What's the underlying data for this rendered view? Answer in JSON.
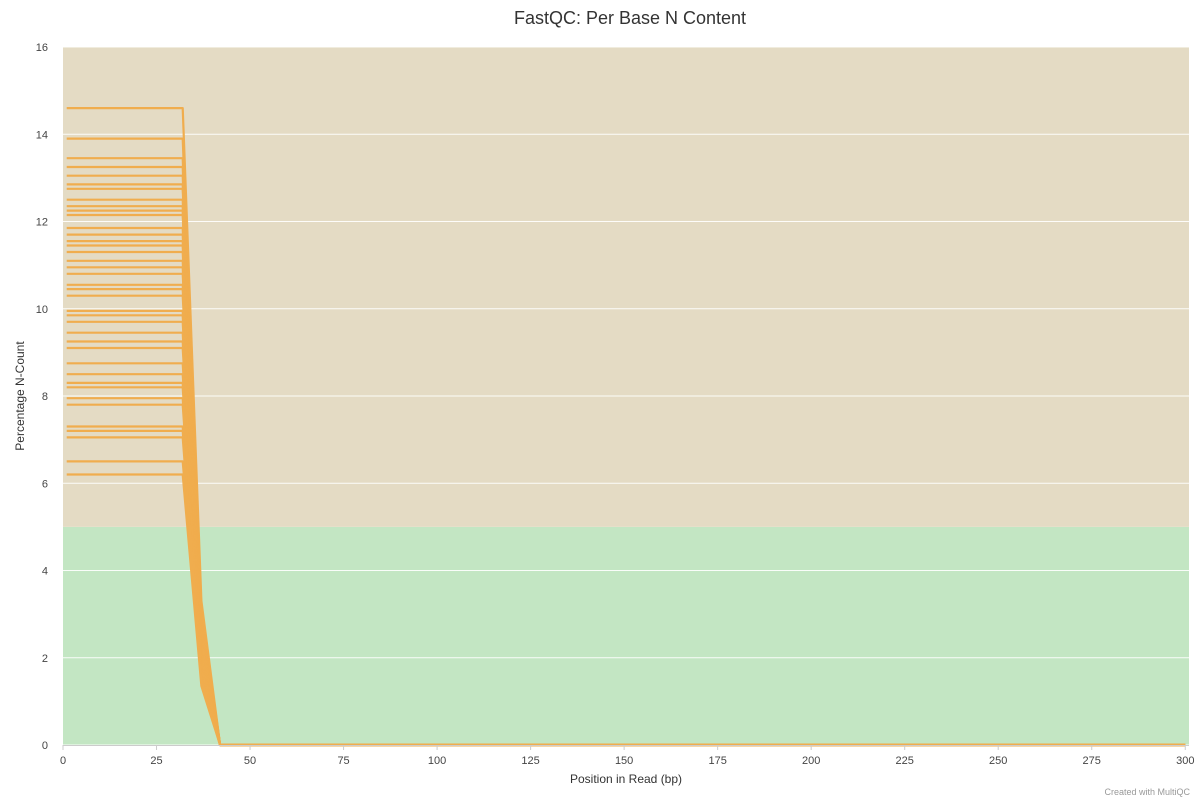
{
  "chart_data": {
    "type": "line",
    "title": "FastQC: Per Base N Content",
    "xlabel": "Position in Read (bp)",
    "ylabel": "Percentage N-Count",
    "xlim": [
      0,
      301
    ],
    "ylim": [
      0,
      16
    ],
    "x_ticks": [
      0,
      25,
      50,
      75,
      100,
      125,
      150,
      175,
      200,
      225,
      250,
      275,
      300
    ],
    "y_ticks": [
      0,
      2,
      4,
      6,
      8,
      10,
      12,
      14,
      16
    ],
    "grid": true,
    "legend": "none",
    "colors": {
      "line": "#f0ad4e",
      "pass_band": "#c3e6c3",
      "warn_band": "#e4dbc4",
      "grid": "#ffffff",
      "axis": "#cccccc"
    },
    "bands": [
      {
        "from": 0,
        "to": 5,
        "status": "pass"
      },
      {
        "from": 5,
        "to": 16,
        "status": "warn"
      }
    ],
    "x": [
      1,
      32,
      37,
      42,
      300
    ],
    "series": [
      {
        "values": [
          14.6,
          14.6,
          3.3,
          0,
          0
        ]
      },
      {
        "values": [
          13.9,
          13.9,
          3.1,
          0,
          0
        ]
      },
      {
        "values": [
          13.45,
          13.45,
          3.0,
          0,
          0
        ]
      },
      {
        "values": [
          13.25,
          13.25,
          3.0,
          0,
          0
        ]
      },
      {
        "values": [
          13.05,
          13.05,
          2.9,
          0,
          0
        ]
      },
      {
        "values": [
          12.85,
          12.85,
          2.9,
          0,
          0
        ]
      },
      {
        "values": [
          12.75,
          12.75,
          2.85,
          0,
          0
        ]
      },
      {
        "values": [
          12.5,
          12.5,
          2.8,
          0,
          0
        ]
      },
      {
        "values": [
          12.35,
          12.35,
          2.75,
          0,
          0
        ]
      },
      {
        "values": [
          12.25,
          12.25,
          2.75,
          0,
          0
        ]
      },
      {
        "values": [
          12.15,
          12.15,
          2.7,
          0,
          0
        ]
      },
      {
        "values": [
          11.85,
          11.85,
          2.65,
          0,
          0
        ]
      },
      {
        "values": [
          11.7,
          11.7,
          2.6,
          0,
          0
        ]
      },
      {
        "values": [
          11.55,
          11.55,
          2.6,
          0,
          0
        ]
      },
      {
        "values": [
          11.45,
          11.45,
          2.55,
          0,
          0
        ]
      },
      {
        "values": [
          11.3,
          11.3,
          2.5,
          0,
          0
        ]
      },
      {
        "values": [
          11.1,
          11.1,
          2.5,
          0,
          0
        ]
      },
      {
        "values": [
          10.95,
          10.95,
          2.45,
          0,
          0
        ]
      },
      {
        "values": [
          10.8,
          10.8,
          2.4,
          0,
          0
        ]
      },
      {
        "values": [
          10.55,
          10.55,
          2.35,
          0,
          0
        ]
      },
      {
        "values": [
          10.45,
          10.45,
          2.35,
          0,
          0
        ]
      },
      {
        "values": [
          10.3,
          10.3,
          2.3,
          0,
          0
        ]
      },
      {
        "values": [
          9.95,
          9.95,
          2.2,
          0,
          0
        ]
      },
      {
        "values": [
          9.85,
          9.85,
          2.2,
          0,
          0
        ]
      },
      {
        "values": [
          9.7,
          9.7,
          2.15,
          0,
          0
        ]
      },
      {
        "values": [
          9.45,
          9.45,
          2.1,
          0,
          0
        ]
      },
      {
        "values": [
          9.25,
          9.25,
          2.05,
          0,
          0
        ]
      },
      {
        "values": [
          9.1,
          9.1,
          2.0,
          0,
          0
        ]
      },
      {
        "values": [
          8.75,
          8.75,
          1.95,
          0,
          0
        ]
      },
      {
        "values": [
          8.5,
          8.5,
          1.9,
          0,
          0
        ]
      },
      {
        "values": [
          8.3,
          8.3,
          1.85,
          0,
          0
        ]
      },
      {
        "values": [
          8.2,
          8.2,
          1.8,
          0,
          0
        ]
      },
      {
        "values": [
          7.95,
          7.95,
          1.75,
          0,
          0
        ]
      },
      {
        "values": [
          7.8,
          7.8,
          1.7,
          0,
          0
        ]
      },
      {
        "values": [
          7.3,
          7.3,
          1.6,
          0,
          0
        ]
      },
      {
        "values": [
          7.2,
          7.2,
          1.55,
          0,
          0
        ]
      },
      {
        "values": [
          7.05,
          7.05,
          1.5,
          0,
          0
        ]
      },
      {
        "values": [
          6.5,
          6.5,
          1.45,
          0,
          0
        ]
      },
      {
        "values": [
          6.2,
          6.2,
          1.35,
          0,
          0
        ]
      }
    ]
  },
  "credits": "Created with MultiQC"
}
